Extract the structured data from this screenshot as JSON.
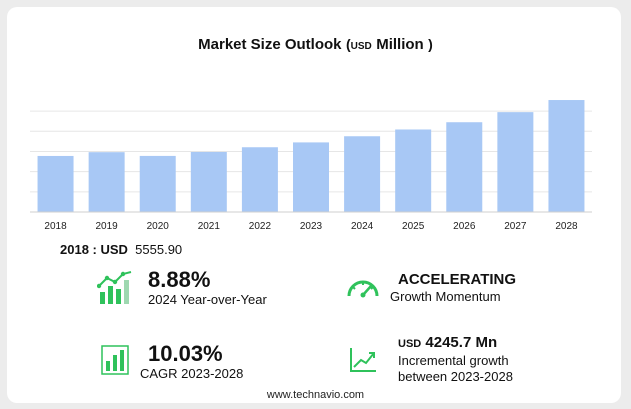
{
  "title": {
    "main": "Market Size Outlook",
    "paren_open": "(",
    "currency": "USD",
    "unit": "Million",
    "paren_close": ")"
  },
  "chart_data": {
    "type": "bar",
    "categories": [
      "2018",
      "2019",
      "2020",
      "2021",
      "2022",
      "2023",
      "2024",
      "2025",
      "2026",
      "2027",
      "2028"
    ],
    "values": [
      5555.9,
      5930,
      5560,
      5950,
      6420,
      6900,
      7510,
      8180,
      8900,
      9900,
      11100
    ],
    "bar_color": "#a8c8f5",
    "grid": true,
    "ylim": [
      0,
      11500
    ]
  },
  "base_year": {
    "label": "2018 : USD",
    "value": "5555.90"
  },
  "kpis": {
    "yoy": {
      "value": "8.88%",
      "label": "2024 Year-over-Year"
    },
    "momentum": {
      "value": "ACCELERATING",
      "label": "Growth Momentum"
    },
    "cagr": {
      "value": "10.03%",
      "label": "CAGR 2023-2028"
    },
    "incremental": {
      "currency": "USD",
      "value": "4245.7 Mn",
      "label_line1": "Incremental growth",
      "label_line2": "between 2023-2028"
    }
  },
  "icons": {
    "yoy": "bar-growth-icon",
    "momentum": "speedometer-icon",
    "cagr": "bar-chart-icon",
    "incremental": "line-chart-icon",
    "accent": "#2fc25b"
  },
  "footer": "www.technavio.com"
}
